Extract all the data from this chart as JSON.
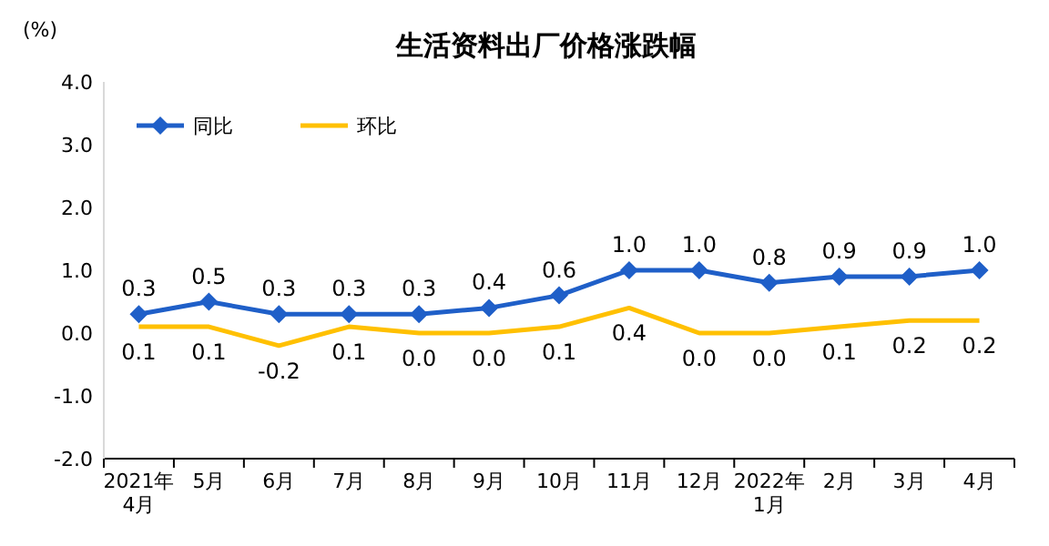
{
  "chart_data": {
    "type": "line",
    "title": "生活资料出厂价格涨跌幅",
    "ylabel": "(%)",
    "categories": [
      "2021年\n4月",
      "5月",
      "6月",
      "7月",
      "8月",
      "9月",
      "10月",
      "11月",
      "12月",
      "2022年\n1月",
      "2月",
      "3月",
      "4月"
    ],
    "series": [
      {
        "name": "同比",
        "color": "#1f5fc8",
        "marker": "diamond",
        "values": [
          0.3,
          0.5,
          0.3,
          0.3,
          0.3,
          0.4,
          0.6,
          1.0,
          1.0,
          0.8,
          0.9,
          0.9,
          1.0
        ],
        "value_labels": [
          "0.3",
          "0.5",
          "0.3",
          "0.3",
          "0.3",
          "0.4",
          "0.6",
          "1.0",
          "1.0",
          "0.8",
          "0.9",
          "0.9",
          "1.0"
        ]
      },
      {
        "name": "环比",
        "color": "#ffc000",
        "marker": "none",
        "values": [
          0.1,
          0.1,
          -0.2,
          0.1,
          0.0,
          0.0,
          0.1,
          0.4,
          0.0,
          0.0,
          0.1,
          0.2,
          0.2
        ],
        "value_labels": [
          "0.1",
          "0.1",
          "-0.2",
          "0.1",
          "0.0",
          "0.0",
          "0.1",
          "0.4",
          "0.0",
          "0.0",
          "0.1",
          "0.2",
          "0.2"
        ]
      }
    ],
    "ylim": [
      -2,
      4
    ],
    "yticks": [
      {
        "value": -2,
        "label": "-2.0"
      },
      {
        "value": -1,
        "label": "-1.0"
      },
      {
        "value": 0,
        "label": "0.0"
      },
      {
        "value": 1,
        "label": "1.0"
      },
      {
        "value": 2,
        "label": "2.0"
      },
      {
        "value": 3,
        "label": "3.0"
      },
      {
        "value": 4,
        "label": "4.0"
      }
    ],
    "legend": "top left"
  }
}
